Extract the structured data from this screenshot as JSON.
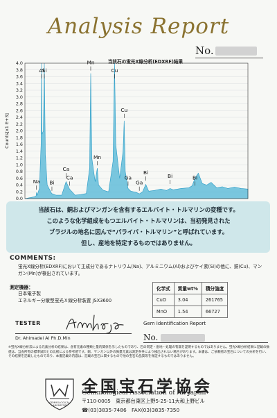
{
  "header": {
    "title": "Analysis Report",
    "no_label": "No."
  },
  "chart_data": {
    "type": "line",
    "title": "当該石の蛍光X線分析(EDXRF)結果",
    "ylabel": "Counts[x1 E+3]",
    "xlabel": "",
    "ylim": [
      0,
      4.0
    ],
    "yticks": [
      "0.0",
      "0.2",
      "0.4",
      "0.6",
      "0.8",
      "1.0",
      "1.2",
      "1.4",
      "1.6",
      "1.8",
      "2.0",
      "2.2",
      "2.4",
      "2.6",
      "2.8",
      "3.0",
      "3.2",
      "3.4",
      "3.6",
      "3.8",
      "4.0"
    ],
    "grid": true,
    "series_color": "#4fb5d6",
    "peak_labels": [
      {
        "label": "Na",
        "x": 1.04,
        "y": 0.18
      },
      {
        "label": "Al",
        "x": 1.49,
        "y": 4.0
      },
      {
        "label": "Si",
        "x": 1.74,
        "y": 4.0
      },
      {
        "label": "Bi",
        "x": 2.42,
        "y": 0.15
      },
      {
        "label": "Ca",
        "x": 3.69,
        "y": 0.55
      },
      {
        "label": "Ca",
        "x": 4.01,
        "y": 0.3
      },
      {
        "label": "Mn",
        "x": 5.9,
        "y": 3.7
      },
      {
        "label": "Mn",
        "x": 6.49,
        "y": 0.9
      },
      {
        "label": "Cu",
        "x": 8.04,
        "y": 4.0
      },
      {
        "label": "Cu",
        "x": 8.9,
        "y": 2.3
      },
      {
        "label": "Ga",
        "x": 9.25,
        "y": 0.3
      },
      {
        "label": "Ga",
        "x": 10.26,
        "y": 0.15
      },
      {
        "label": "Bi",
        "x": 10.84,
        "y": 0.45
      },
      {
        "label": "Bi",
        "x": 13.02,
        "y": 0.35
      },
      {
        "label": "Bi",
        "x": 15.25,
        "y": 0.3
      }
    ],
    "x": [
      0.0,
      0.8,
      1.0,
      1.04,
      1.1,
      1.3,
      1.45,
      1.49,
      1.53,
      1.65,
      1.74,
      1.83,
      2.0,
      2.4,
      2.8,
      3.3,
      3.69,
      4.0,
      4.5,
      5.0,
      5.5,
      5.8,
      5.9,
      6.0,
      6.3,
      6.49,
      6.6,
      7.0,
      7.5,
      7.9,
      8.04,
      8.15,
      8.5,
      8.8,
      8.9,
      9.0,
      9.25,
      9.5,
      10.0,
      10.26,
      10.55,
      10.84,
      11.1,
      11.6,
      12.2,
      12.7,
      13.02,
      13.3,
      14.0,
      14.7,
      15.0,
      15.25,
      15.55,
      15.9,
      16.3,
      16.7,
      17.2,
      17.7,
      18.2,
      18.8,
      19.4,
      20.0
    ],
    "y": [
      0.0,
      0.05,
      0.08,
      0.18,
      0.1,
      0.3,
      1.6,
      4.0,
      1.9,
      2.0,
      4.0,
      1.3,
      0.4,
      0.15,
      0.1,
      0.1,
      0.5,
      0.28,
      0.1,
      0.12,
      0.15,
      0.9,
      3.7,
      1.2,
      0.5,
      0.9,
      0.4,
      0.25,
      0.2,
      1.1,
      4.0,
      1.6,
      0.6,
      1.4,
      2.3,
      0.8,
      0.3,
      0.22,
      0.18,
      0.14,
      0.2,
      0.42,
      0.22,
      0.24,
      0.28,
      0.24,
      0.3,
      0.26,
      0.3,
      0.32,
      0.38,
      0.6,
      0.75,
      0.45,
      0.4,
      0.48,
      0.32,
      0.35,
      0.3,
      0.34,
      0.3,
      0.28
    ]
  },
  "band": {
    "line1": "当該石は、銅およびマンガンを含有するエルバイト・トルマリンの変種です。",
    "line2": "このような化学組成をもつエルバイト・トルマリンは、当初発見された",
    "line3": "ブラジルの地名に因んで“パライバ・トルマリン”と呼ばれています。",
    "line4": "但し、産地を特定するものではありません。"
  },
  "comments": {
    "title": "COMMENTS:",
    "body": "蛍光X線分析(EDXRF)において主成分であるナトリウム(Na)、アルミニウム(Al)およびケイ素(Si)の他に、銅(Cu)、マンガン(Mn)が検出されています。",
    "instrument_label": "測定機器：",
    "instrument_line1": "日本電子製",
    "instrument_line2": "エネルギー分散型蛍光Ｘ線分析装置 JSX3600"
  },
  "composition_table": {
    "headers": [
      "化学式",
      "質量wt%",
      "積分強度"
    ],
    "rows": [
      [
        "CuO",
        "3.04",
        "261765"
      ],
      [
        "MnO",
        "1.54",
        "66727"
      ]
    ]
  },
  "tester": {
    "label": "TESTER",
    "name": "Dr. Ahimadei AI Ph.D.Min",
    "signature": "Ahmadjan",
    "report_label": "Gem Identification Report",
    "report_no_label": "No."
  },
  "footnote": "※蛍光X線分析法による元素分析の結果は、含有元素の種類と量的関係を示したものであり、石の同定・産地・処理の有無を証明するものではありません。蛍光X線分析結果に記載の数値は、当会所有の標準試料との比較による参考値です。銅、マンガン以外の微量元素は測定条件により検出されない場合があります。本書は、ご依頼者の宝石についての分析を行い、その結果を記載したものであり、本書記載の内容は、記載の宝石に関するもので他の宝石の品質等を保証するものではありません。",
  "organization": {
    "name_ja": "全国宝石学協会",
    "name_en": "Gemmological Association of All Japan",
    "address": "〒110-0005　東京都台東区上野5-25-11大和上野ビル",
    "phone": "☎(03)3835-7486　FAX(03)3835-7350",
    "logo_text": "GEMMOLOGICAL LABORATORY"
  }
}
